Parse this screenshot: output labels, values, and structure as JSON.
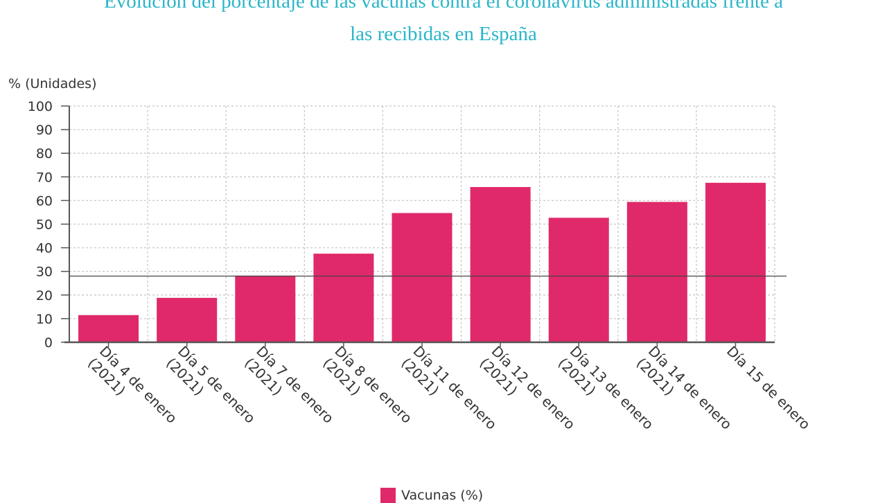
{
  "colors": {
    "title": "#2bb5c9",
    "bar": "#e0296a",
    "grid": "#c8c8c8",
    "axis": "#555555"
  },
  "chart_data": {
    "type": "bar",
    "title": "Evolución del porcentaje de las vacunas contra el coronavirus administradas frente a las recibidas en España",
    "title_lines": [
      "Evolución del porcentaje de las vacunas contra el coronavirus administradas frente a",
      "las recibidas en España"
    ],
    "ylabel": "% (Unidades)",
    "ylim": [
      0,
      100
    ],
    "yticks": [
      0,
      10,
      20,
      30,
      40,
      50,
      60,
      70,
      80,
      90,
      100
    ],
    "grid": true,
    "reference_line": 28,
    "categories": [
      [
        "Día 4 de enero",
        "(2021)"
      ],
      [
        "Día 5 de enero",
        "(2021)"
      ],
      [
        "Día 7 de enero",
        "(2021)"
      ],
      [
        "Día 8 de enero",
        "(2021)"
      ],
      [
        "Día 11 de enero",
        "(2021)"
      ],
      [
        "Día 12 de enero",
        "(2021)"
      ],
      [
        "Día 13 de enero",
        "(2021)"
      ],
      [
        "Día 14 de enero",
        "(2021)"
      ],
      [
        "Día 15 de enero"
      ]
    ],
    "series": [
      {
        "name": "Vacunas (%)",
        "values": [
          11.5,
          18.8,
          28.2,
          37.5,
          54.7,
          65.7,
          52.7,
          59.4,
          67.5
        ]
      }
    ],
    "legend_position": "bottom"
  }
}
